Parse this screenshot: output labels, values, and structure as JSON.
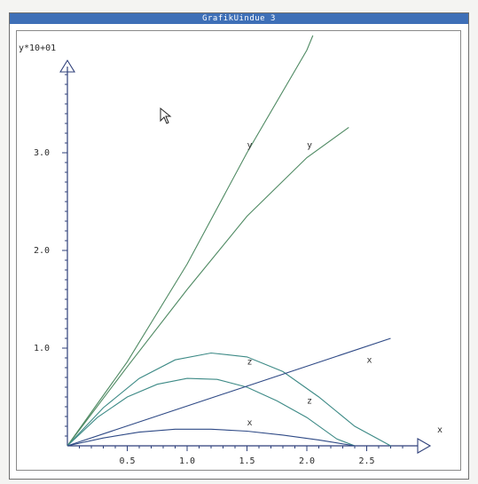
{
  "window": {
    "title": "GrafikUindue  3"
  },
  "colors": {
    "title_bar": "#3e6fb7",
    "y_curves": "#4f8a63",
    "z_curves": "#3d8a86",
    "x_curves": "#2f4a86",
    "axes": "#2e3f7a"
  },
  "chart_data": {
    "type": "line",
    "ylabel": "y*10+01",
    "xlabel": "x",
    "xlim": [
      0,
      3.0
    ],
    "ylim": [
      0,
      4.2
    ],
    "x_ticks": [
      "0.5",
      "1.0",
      "1.5",
      "2.0",
      "2.5"
    ],
    "y_ticks": [
      "1.0",
      "2.0",
      "3.0"
    ],
    "series": [
      {
        "name": "y",
        "x": [
          0,
          0.5,
          1.0,
          1.5,
          2.0,
          2.05
        ],
        "y": [
          0,
          0.86,
          1.86,
          3.0,
          4.05,
          4.2
        ]
      },
      {
        "name": "y",
        "x": [
          0,
          0.5,
          1.0,
          1.5,
          2.0,
          2.35
        ],
        "y": [
          0,
          0.81,
          1.6,
          2.35,
          2.95,
          3.26
        ]
      },
      {
        "name": "z",
        "x": [
          0,
          0.25,
          0.5,
          0.75,
          1.0,
          1.25,
          1.5,
          1.75,
          2.0,
          2.25,
          2.4
        ],
        "y": [
          0,
          0.29,
          0.5,
          0.63,
          0.69,
          0.68,
          0.6,
          0.46,
          0.29,
          0.07,
          0
        ]
      },
      {
        "name": "z",
        "x": [
          0,
          0.3,
          0.6,
          0.9,
          1.2,
          1.5,
          1.8,
          2.1,
          2.4,
          2.7
        ],
        "y": [
          0,
          0.39,
          0.69,
          0.88,
          0.95,
          0.91,
          0.76,
          0.5,
          0.2,
          0
        ]
      },
      {
        "name": "x",
        "x": [
          0,
          0.3,
          0.6,
          0.9,
          1.2,
          1.5,
          1.8,
          2.1,
          2.4
        ],
        "y": [
          0,
          0.08,
          0.14,
          0.17,
          0.17,
          0.15,
          0.11,
          0.06,
          0
        ]
      },
      {
        "name": "x",
        "x": [
          0,
          2.7
        ],
        "y": [
          0,
          1.1
        ]
      }
    ],
    "labels": [
      {
        "text": "y",
        "x": 1.5,
        "y": 3.05
      },
      {
        "text": "y",
        "x": 2.0,
        "y": 3.05
      },
      {
        "text": "z",
        "x": 1.5,
        "y": 0.83
      },
      {
        "text": "z",
        "x": 2.0,
        "y": 0.43
      },
      {
        "text": "x",
        "x": 2.5,
        "y": 0.85
      },
      {
        "text": "x",
        "x": 1.5,
        "y": 0.21
      }
    ]
  }
}
